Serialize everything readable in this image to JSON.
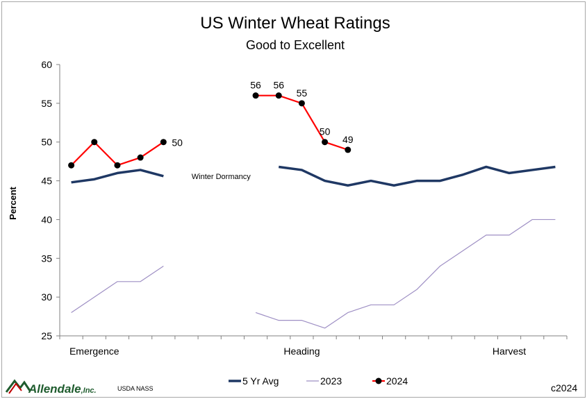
{
  "chart_data": {
    "type": "line",
    "title": "US Winter Wheat Ratings",
    "subtitle": "Good to Excellent",
    "ylabel": "Percent",
    "ylim": [
      25,
      60
    ],
    "yticks": [
      25,
      30,
      35,
      40,
      45,
      50,
      55,
      60
    ],
    "x_count": 22,
    "x_labels": [
      {
        "index": 1,
        "label": "Emergence"
      },
      {
        "index": 10,
        "label": "Heading"
      },
      {
        "index": 19,
        "label": "Harvest"
      }
    ],
    "series": [
      {
        "name": "5 Yr Avg",
        "color": "#1f3864",
        "style": "thick",
        "values": [
          44.8,
          45.2,
          46.0,
          46.4,
          45.6,
          null,
          null,
          null,
          null,
          46.8,
          46.4,
          45.0,
          44.4,
          45.0,
          44.4,
          45.0,
          45.0,
          45.8,
          46.8,
          46.0,
          46.4,
          46.8
        ]
      },
      {
        "name": "2023",
        "color": "#9e8fc4",
        "style": "thin",
        "values": [
          28,
          30,
          32,
          32,
          34,
          null,
          null,
          null,
          28,
          27,
          27,
          26,
          28,
          29,
          29,
          31,
          34,
          36,
          38,
          38,
          40,
          40
        ]
      },
      {
        "name": "2024",
        "color": "#ff0000",
        "style": "markers",
        "values": [
          47,
          50,
          47,
          48,
          50,
          null,
          null,
          null,
          56,
          56,
          55,
          50,
          49,
          null,
          null,
          null,
          null,
          null,
          null,
          null,
          null,
          null
        ],
        "labels": [
          {
            "index": 4,
            "text": "50"
          },
          {
            "index": 8,
            "text": "56"
          },
          {
            "index": 9,
            "text": "56"
          },
          {
            "index": 10,
            "text": "55"
          },
          {
            "index": 11,
            "text": "50"
          },
          {
            "index": 12,
            "text": "49"
          }
        ]
      }
    ],
    "annotations": [
      {
        "text": "Winter Dormancy",
        "x_index": 6.5,
        "y": 45.5
      }
    ],
    "legend_placement": "bottom"
  },
  "footer": {
    "brand": "Allendale",
    "brand_suffix": ",Inc.",
    "source": "USDA NASS",
    "copyright": "c2024"
  }
}
